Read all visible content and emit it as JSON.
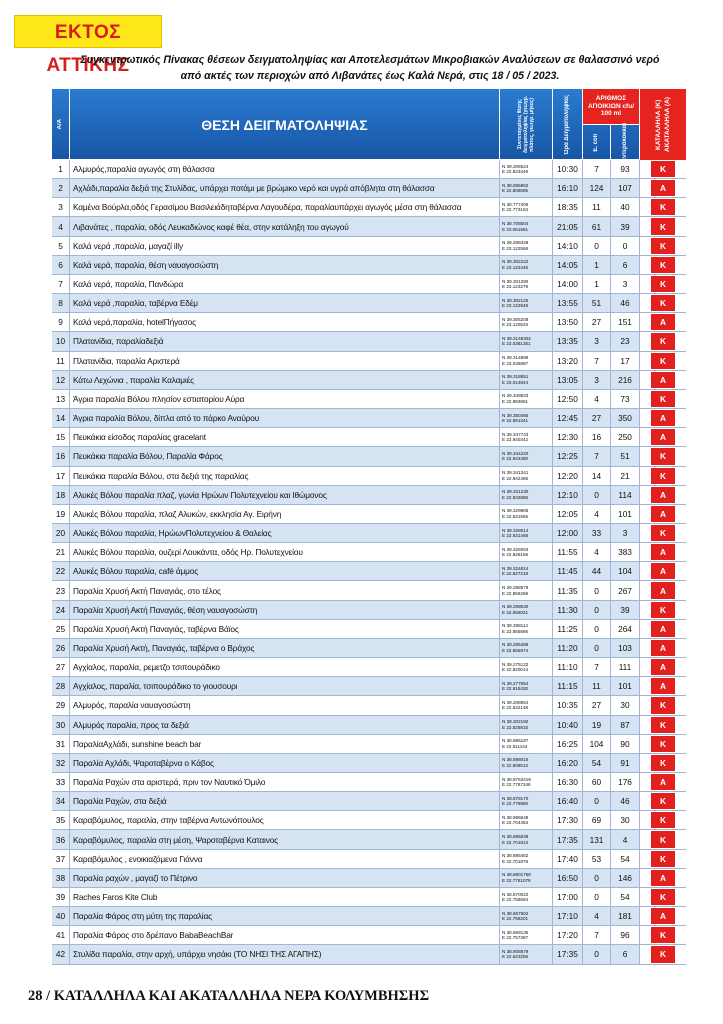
{
  "header": {
    "badge": "ΕΚΤΟΣ ΑΤΤΙΚΗΣ",
    "title_line1": "Συγκεντρωτικός Πίνακας θέσεων δειγματοληψίας και Αποτελεσμάτων Μικροβιακών Αναλύσεων σε θαλασσινό νερό",
    "title_line2": "από ακτές  των περιοχών από Λιβανάτες  έως Καλά Νερά, στις 18 / 05 / 2023."
  },
  "table": {
    "columns": {
      "no": "Α/Α",
      "location": "ΘΕΣΗ ΔΕΙΓΜΑΤΟΛΗΨΙΑΣ",
      "coords": "Συντεταγμένες θέσης δειγματοληψίας (γεωγρ. πλάτος, γεωγρ. μήκος)",
      "time": "Ώρα Δειγματοληψίας",
      "colonies": "ΑΡΙΘΜΟΣ ΑΠΟΙΚΙΩΝ cfu/ 100 ml",
      "ecoli": "E. coli",
      "entero": "Εντερόκοκκοι",
      "status": "ΚΑΤΑΛΛΗΛΑ (Κ) ΑΚΑΤΑΛΛΗΛΑ (Α)"
    },
    "rows": [
      [
        1,
        "Αλμυρός,παραλία αγωγός στη θάλασσα",
        "N 39.205524",
        "E 22.823449",
        "10:30",
        7,
        93,
        "Κ"
      ],
      [
        2,
        "Αχλάδι,παραλία δεξιά της Στυλίδας, υπάρχει ποτάμι με βρώμικο νερό και υγρά απόβλητα στη θάλασσα",
        "N 38.885862",
        "E 22.808695",
        "16:10",
        124,
        107,
        "Α"
      ],
      [
        3,
        "Καμένα Βούρλα,οδός Γερασίμου Βασιλειάδηταβέρνα Λαγουδέρα, παραλίαυπάρχει αγωγός μέσα στη θάλασσα",
        "N 38.777406",
        "E 22.773184",
        "18:35",
        11,
        40,
        "Κ"
      ],
      [
        4,
        "Λιβανάτες , παραλία, οδός Λευκαδιώνος καφέ θέα, στην κατάληξη του αγωγού",
        "N 38.708504",
        "E 23.061581",
        "21:05",
        61,
        39,
        "Κ"
      ],
      [
        5,
        "Καλά νερά ,παραλία, μαγαζί illy",
        "N 39.298428",
        "E 23.122568",
        "14:10",
        0,
        0,
        "Κ"
      ],
      [
        6,
        "Καλά νερά, παραλία, θέση ναυαγοσώστη",
        "N 39.302222",
        "E 23.122445",
        "14:05",
        1,
        6,
        "Κ"
      ],
      [
        7,
        "Καλά νερά, παραλία, Πανδώρα",
        "N 39.301290",
        "E 23.123279",
        "14:00",
        1,
        3,
        "Κ"
      ],
      [
        8,
        "Καλά νερά ,παραλία, ταβέρνα Εδέμ",
        "N 39.302125",
        "E 23.122948",
        "13:55",
        51,
        46,
        "Κ"
      ],
      [
        9,
        "Καλά νερά,παραλία, hotelΠήγασος",
        "N 39.305208",
        "E 23.120533",
        "13:50",
        27,
        151,
        "Α"
      ],
      [
        10,
        "Πλατανίδια, παραλίαδεξιά",
        "N 39.3148302",
        "E 23.0381351",
        "13:35",
        3,
        23,
        "Κ"
      ],
      [
        11,
        "Πλατανίδια, παραλία Αριστερά",
        "N 39.314899",
        "E 23.036897",
        "13:20",
        7,
        17,
        "Κ"
      ],
      [
        12,
        "Κάτω Λεχώνια , παραλία Καλαμιές",
        "N 39.318651",
        "E 23.014844",
        "13:05",
        3,
        216,
        "Α"
      ],
      [
        13,
        "Άγρια παραλία Βόλου πλησίον εστιατορίου Αύρα",
        "N 39.349833",
        "E 22.983881",
        "12:50",
        4,
        73,
        "Κ"
      ],
      [
        14,
        "Άγρια παραλία Βόλου, δίπλα από το πάρκο Αναύρου",
        "N 39.350485",
        "E 22.981341",
        "12:45",
        27,
        350,
        "Α"
      ],
      [
        15,
        "Πευκάκια είσοδος παραλίας gracelant",
        "N 39.347743",
        "E 22.940342",
        "12:30",
        16,
        250,
        "Α"
      ],
      [
        16,
        "Πευκάκια παραλία Βόλου, Παραλία Φάρος",
        "N 39.344220",
        "E 22.943480",
        "12:25",
        7,
        51,
        "Κ"
      ],
      [
        17,
        "Πευκάκια παραλία Βόλου, στα δεξιά της παραλίας",
        "N 39.341341",
        "E 22.942486",
        "12:20",
        14,
        21,
        "Κ"
      ],
      [
        18,
        "Αλυκές Βόλου παραλία πλαζ, γωνία Ηρώων Πολυτεχνείου και Ιθώμονος",
        "N 39.331230",
        "E 22.832885",
        "12:10",
        0,
        114,
        "Α"
      ],
      [
        19,
        "Αλυκές Βόλου παραλία, πλαζ Αλυκών, εκκλησία Αγ. Ειρήνη",
        "N 39.329865",
        "E 22.831555",
        "12:05",
        4,
        101,
        "Α"
      ],
      [
        20,
        "Αλυκές Βόλου παραλία, ΗρώωνΠολυτεχνείου & Θαλείας",
        "N 39.328614",
        "E 22.831468",
        "12:00",
        33,
        3,
        "Κ"
      ],
      [
        21,
        "Αλυκές Βόλου παραλία, ουζερί Λουκάντα, οδός Ηρ. Πολυτεχνείου",
        "N 39.326053",
        "E 22.828158",
        "11:55",
        4,
        383,
        "Α"
      ],
      [
        22,
        "Αλυκές Βόλου παραλία, café άμμος",
        "N 39.324814",
        "E 22.827219",
        "11:45",
        44,
        104,
        "Α"
      ],
      [
        23,
        "Παραλία Χρυσή Ακτή  Παναγιάς, στο τέλος",
        "N 39.288579",
        "E 22.856268",
        "11:35",
        0,
        267,
        "Α"
      ],
      [
        24,
        "Παραλία Χρυσή Ακτή  Παναγιάς, θέση ναυαγοσώστη",
        "N 39.288630",
        "E 22.856021",
        "11:30",
        0,
        39,
        "Κ"
      ],
      [
        25,
        "Παραλία Χρυσή Ακτή Παναγιάς, ταβέρνα Βάϊος",
        "N 39.288114",
        "E 22.855886",
        "11:25",
        0,
        264,
        "Α"
      ],
      [
        26,
        "Παραλία Χρυσή Ακτή, Παναγιάς, ταβέρνα ο Βράχος",
        "N 39.285488",
        "E 22.855974",
        "11:20",
        0,
        103,
        "Α"
      ],
      [
        27,
        "Αγχίαλος,  παραλία,  ρεμετζο τσιπουράδικο",
        "N 39.275122",
        "E 22.820014",
        "11:10",
        7,
        111,
        "Α"
      ],
      [
        28,
        "Αγχίαλος, παραλία, τσιπουράδικο το γιουσουρι",
        "N 39.277654",
        "E 22.818430",
        "11:15",
        11,
        101,
        "Α"
      ],
      [
        29,
        "Αλμυρός, παραλία ναυαγοσώστη",
        "N 39.208654",
        "E 22.822148",
        "10:35",
        27,
        30,
        "Κ"
      ],
      [
        30,
        "Αλμυρός  παραλία, προς τα δεξιά",
        "N 39.202182",
        "E 22.825815",
        "10:40",
        19,
        87,
        "Κ"
      ],
      [
        31,
        "ΠαραλίαΑχλάδι, sunshine beach bar",
        "N 38.886187",
        "E 22.811144",
        "16:25",
        104,
        90,
        "Κ"
      ],
      [
        32,
        "Παραλία Αχλάδι, Ψαροταβέρνα ο Κάβος",
        "N 38.886015",
        "E 22.808012",
        "16:20",
        54,
        91,
        "Κ"
      ],
      [
        33,
        "Παραλία Ραχών στα αριστερά, πριν τον Ναυτικό Όμιλο",
        "N 38.8763419",
        "E 22.7787248",
        "16:30",
        60,
        176,
        "Α"
      ],
      [
        34,
        "Παραλία Ραχών, στα δεξιά",
        "N 38.878170",
        "E 22.778880",
        "16:40",
        0,
        46,
        "Κ"
      ],
      [
        35,
        "Καραβόμυλος,  παραλία, στην ταβέρνα Αντωνόπουλος",
        "N 38.886649",
        "E 22.704453",
        "17:30",
        69,
        30,
        "Κ"
      ],
      [
        36,
        "Καραβόμυλος,  παραλία στη μέση, Ψαροταβέρνα Καταινος",
        "N 38.885838",
        "E 22.701813",
        "17:35",
        131,
        4,
        "Κ"
      ],
      [
        37,
        "Καραβόμυλος , ενοικιαζόμενα Γιάννα",
        "N 38.885482",
        "E 22.701879",
        "17:40",
        53,
        54,
        "Κ"
      ],
      [
        38,
        "Παραλία ραχών , μαγαζί το Πέτρινο",
        "N 38.8801758",
        "E 22.7781079",
        "16:50",
        0,
        146,
        "Α"
      ],
      [
        39,
        "Raches Faros Kite Club",
        "N 38.870022",
        "E 22.758584",
        "17:00",
        0,
        54,
        "Κ"
      ],
      [
        40,
        "Παραλία Φάρος στη μύτη της παραλίας",
        "N 38.867562",
        "E 22.756201",
        "17:10",
        4,
        181,
        "Α"
      ],
      [
        41,
        "Παραλία Φάρος στο δρέπανο BabaBeachBar",
        "N 38.869135",
        "E 22.757387",
        "17:20",
        7,
        96,
        "Κ"
      ],
      [
        42,
        "Στυλίδα παραλία, στην αρχή, υπάρχει νησάκι (ΤΟ ΝΗΣΙ ΤΗΣ ΑΓΑΠΗΣ)",
        "N 38.908579",
        "E 22.623256",
        "17:35",
        0,
        6,
        "Κ"
      ]
    ]
  },
  "footer": {
    "text": "28 / ΚΑΤΑΛΛΗΛΑ ΚΑΙ ΑΚΑΤΑΛΛΗΛΑ ΝΕΡΑ ΚΟΛΥΜΒΗΣΗΣ"
  }
}
